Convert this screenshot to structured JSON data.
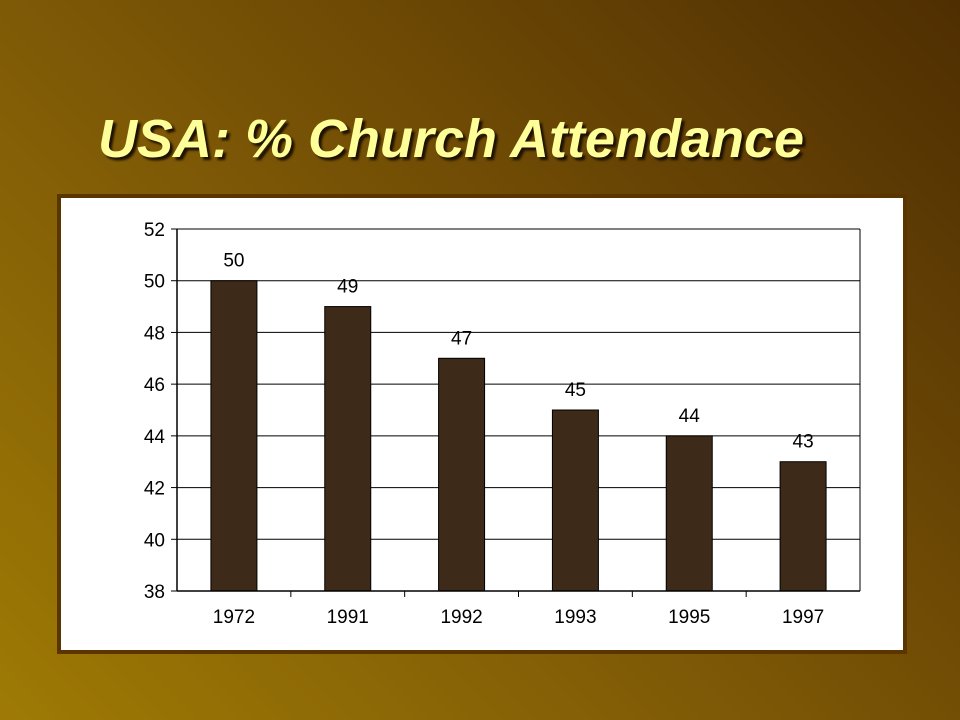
{
  "slide": {
    "title": "USA:  % Church Attendance"
  },
  "colors": {
    "bar": "#3d2a18",
    "title_text": "#ffff99",
    "frame_border": "#5a3500"
  },
  "chart_data": {
    "type": "bar",
    "title": "USA:  % Church Attendance",
    "xlabel": "",
    "ylabel": "",
    "categories": [
      "1972",
      "1991",
      "1992",
      "1993",
      "1995",
      "1997"
    ],
    "values": [
      50,
      49,
      47,
      45,
      44,
      43
    ],
    "data_labels": [
      "50",
      "49",
      "47",
      "45",
      "44",
      "43"
    ],
    "ylim": [
      38,
      52
    ],
    "yticks": [
      38,
      40,
      42,
      44,
      46,
      48,
      50,
      52
    ],
    "grid": "horizontal",
    "legend": "none"
  }
}
